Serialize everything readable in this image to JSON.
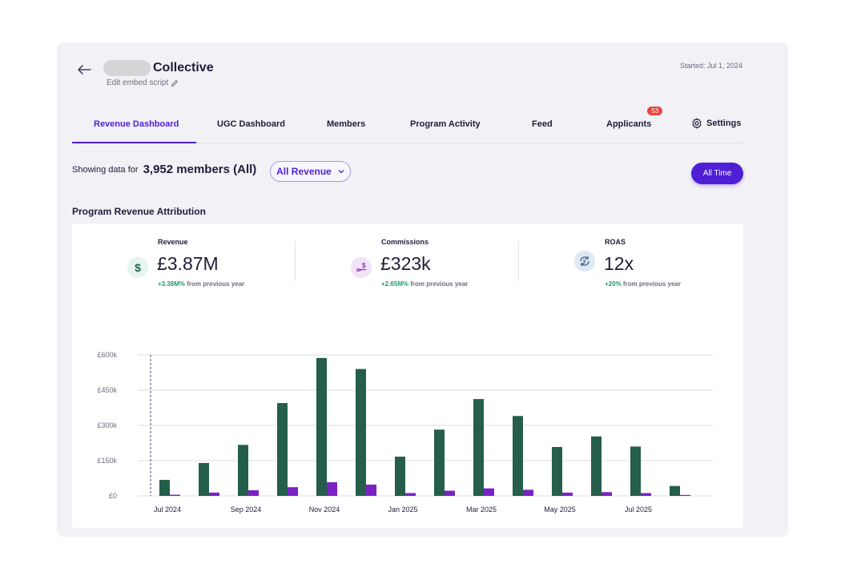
{
  "header": {
    "title": "Collective",
    "embed_label": "Edit embed script",
    "started": "Started: Jul 1, 2024"
  },
  "tabs": [
    {
      "label": "Revenue Dashboard"
    },
    {
      "label": "UGC Dashboard"
    },
    {
      "label": "Members"
    },
    {
      "label": "Program Activity"
    },
    {
      "label": "Feed"
    },
    {
      "label": "Applicants",
      "badge": "53"
    },
    {
      "label": "Settings"
    }
  ],
  "filters": {
    "showing_label": "Showing data for",
    "member_count": "3,952 members (All)",
    "revenue_filter": "All Revenue",
    "time_filter": "All Time"
  },
  "section_title": "Program Revenue Attribution",
  "kpis": [
    {
      "label": "Revenue",
      "value": "£3.87M",
      "change": "+3.38M%",
      "change_suffix": "from previous year",
      "icon": "dollar-icon",
      "icon_color": "#1f6b4f",
      "icon_bg": "#e6f5ee"
    },
    {
      "label": "Commissions",
      "value": "£323k",
      "change": "+2.65M%",
      "change_suffix": "from previous year",
      "icon": "hand-coin-icon",
      "icon_color": "#8a2fc0",
      "icon_bg": "#f1e4f8"
    },
    {
      "label": "ROAS",
      "value": "12x",
      "change": "+20%",
      "change_suffix": "from previous year",
      "icon": "refresh-currency-icon",
      "icon_color": "#3b5c8a",
      "icon_bg": "#dfe8f3"
    }
  ],
  "colors": {
    "accent": "#4f1fd6",
    "revenue_bar": "#255e4a",
    "commission_bar": "#7a22c4",
    "positive": "#1f9a6c"
  },
  "chart_data": {
    "type": "bar",
    "categories": [
      "Jul 2024",
      "Aug 2024",
      "Sep 2024",
      "Oct 2024",
      "Nov 2024",
      "Dec 2024",
      "Jan 2025",
      "Feb 2025",
      "Mar 2025",
      "Apr 2025",
      "May 2025",
      "Jun 2025",
      "Jul 2025",
      "Aug 2025"
    ],
    "x_tick_labels": [
      "Jul 2024",
      "",
      "Sep 2024",
      "",
      "Nov 2024",
      "",
      "Jan 2025",
      "",
      "Mar 2025",
      "",
      "May 2025",
      "",
      "Jul 2025",
      ""
    ],
    "series": [
      {
        "values": [
          68000,
          140000,
          217000,
          395000,
          587000,
          540000,
          167000,
          282000,
          412000,
          340000,
          208000,
          253000,
          210000,
          42000
        ]
      },
      {
        "values": [
          5000,
          14000,
          24000,
          37000,
          58000,
          48000,
          12000,
          22000,
          32000,
          26000,
          14000,
          16000,
          12000,
          4000
        ]
      }
    ],
    "y_ticks": [
      "£0",
      "£150k",
      "£300k",
      "£450k",
      "£600k"
    ],
    "y_tick_values": [
      0,
      150000,
      300000,
      450000,
      600000
    ],
    "ylim": [
      0,
      600000
    ],
    "grid": true
  }
}
